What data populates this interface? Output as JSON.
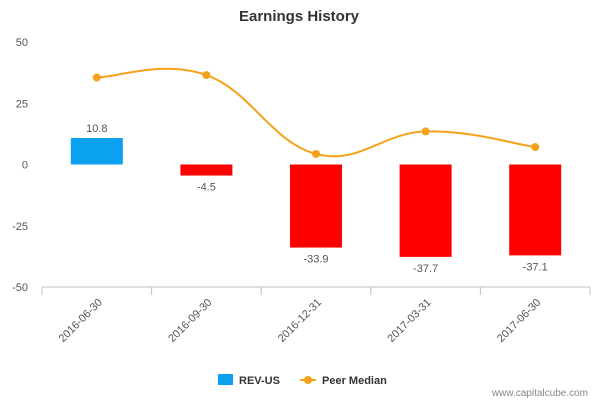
{
  "chart_data": {
    "type": "bar",
    "title": "Earnings History",
    "categories": [
      "2016-06-30",
      "2016-09-30",
      "2016-12-31",
      "2017-03-31",
      "2017-06-30"
    ],
    "ylim": [
      -50,
      50
    ],
    "yticks": [
      50,
      25,
      0,
      -25,
      -50
    ],
    "grid": false,
    "legend_position": "bottom",
    "series": [
      {
        "name": "REV-US",
        "kind": "bar",
        "values": [
          10.8,
          -4.5,
          -33.9,
          -37.7,
          -37.1
        ],
        "color_positive": "#0aa1f0",
        "color_negative": "#ff0000"
      },
      {
        "name": "Peer Median",
        "kind": "line",
        "values": [
          35.5,
          36.5,
          4.3,
          13.5,
          7.1
        ],
        "color": "#f5a21a"
      }
    ]
  },
  "watermark": "www.capitalcube.com"
}
